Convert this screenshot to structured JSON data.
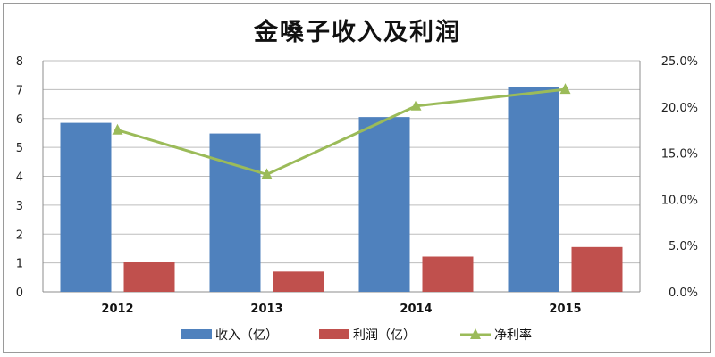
{
  "chart_data": {
    "type": "bar",
    "title": "金嗓子收入及利润",
    "categories": [
      "2012",
      "2013",
      "2014",
      "2015"
    ],
    "series": [
      {
        "name": "收入（亿）",
        "type": "bar",
        "axis": "left",
        "color": "#4F81BD",
        "values": [
          5.85,
          5.48,
          6.05,
          7.08
        ]
      },
      {
        "name": "利润（亿）",
        "type": "bar",
        "axis": "left",
        "color": "#C0504D",
        "values": [
          1.03,
          0.7,
          1.22,
          1.55
        ]
      },
      {
        "name": "净利率",
        "type": "line",
        "axis": "right",
        "color": "#9BBB59",
        "marker": "triangle",
        "values": [
          17.5,
          12.7,
          20.1,
          21.9
        ]
      }
    ],
    "y_left": {
      "ylim": [
        0,
        8
      ],
      "ticks": [
        "0",
        "1",
        "2",
        "3",
        "4",
        "5",
        "6",
        "7",
        "8"
      ]
    },
    "y_right": {
      "ylim": [
        0,
        25
      ],
      "ticks": [
        "0.0%",
        "5.0%",
        "10.0%",
        "15.0%",
        "20.0%",
        "25.0%"
      ]
    },
    "grid": true,
    "legend_position": "bottom"
  }
}
